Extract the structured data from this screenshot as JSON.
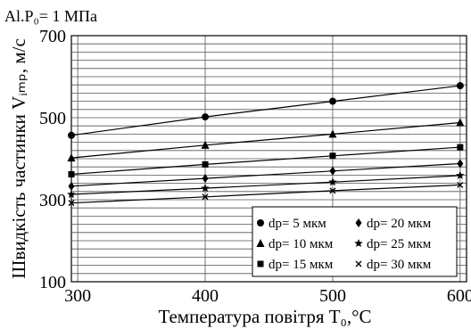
{
  "chart_data": {
    "type": "line",
    "title": "Al.P₀= 1 МПа",
    "xlabel": "Температура повітря T₀,°C",
    "ylabel": "Швидкість частинки Vᵢₘₚ, м/с",
    "xlim": [
      295,
      605
    ],
    "ylim": [
      100,
      700
    ],
    "xticks": [
      300,
      400,
      500,
      600
    ],
    "yticks": [
      100,
      300,
      500,
      700
    ],
    "grid": true,
    "legend_position": "bottom-right",
    "x": [
      295,
      400,
      500,
      600
    ],
    "series": [
      {
        "name": "dp= 5 мкм",
        "marker": "circle",
        "values": [
          457,
          502,
          540,
          578
        ]
      },
      {
        "name": "dp= 10 мкм",
        "marker": "triangle",
        "values": [
          402,
          433,
          460,
          488
        ]
      },
      {
        "name": "dp= 15 мкм",
        "marker": "square",
        "values": [
          362,
          386,
          407,
          428
        ]
      },
      {
        "name": "dp= 20 мкм",
        "marker": "diamond",
        "values": [
          333,
          352,
          370,
          388
        ]
      },
      {
        "name": "dp= 25 мкм",
        "marker": "star",
        "values": [
          313,
          328,
          343,
          359
        ]
      },
      {
        "name": "dp= 30 мкм",
        "marker": "cross",
        "values": [
          292,
          307,
          322,
          336
        ]
      }
    ]
  }
}
